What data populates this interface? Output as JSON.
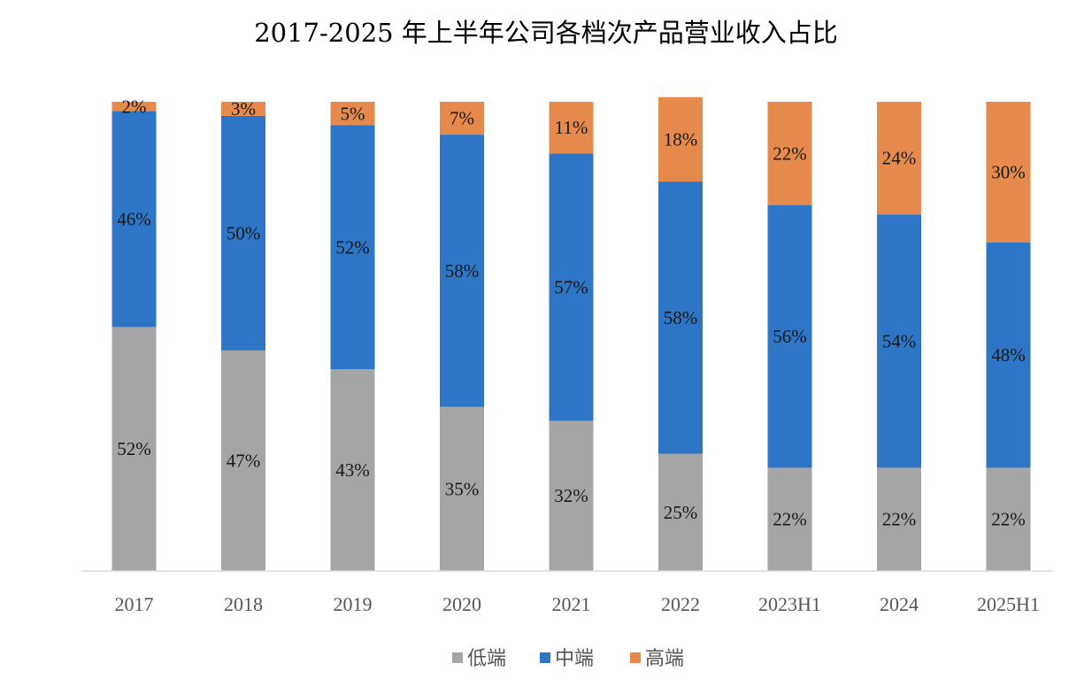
{
  "chart_data": {
    "type": "bar",
    "stacked": true,
    "title": "2017-2025 年上半年公司各档次产品营业收入占比",
    "categories": [
      "2017",
      "2018",
      "2019",
      "2020",
      "2021",
      "2022",
      "2023H1",
      "2024",
      "2025H1"
    ],
    "series": [
      {
        "name": "低端",
        "color": "#a5a5a5",
        "values": [
          52,
          47,
          43,
          35,
          32,
          25,
          22,
          22,
          22
        ],
        "labels": [
          "52%",
          "47%",
          "43%",
          "35%",
          "32%",
          "25%",
          "22%",
          "22%",
          "22%"
        ]
      },
      {
        "name": "中端",
        "color": "#2e75c6",
        "values": [
          46,
          50,
          52,
          58,
          57,
          58,
          56,
          54,
          48
        ],
        "labels": [
          "46%",
          "50%",
          "52%",
          "58%",
          "57%",
          "58%",
          "56%",
          "54%",
          "48%"
        ]
      },
      {
        "name": "高端",
        "color": "#e58a4c",
        "values": [
          2,
          3,
          5,
          7,
          11,
          18,
          22,
          24,
          30
        ],
        "labels": [
          "2%",
          "3%",
          "5%",
          "7%",
          "11%",
          "18%",
          "22%",
          "24%",
          "30%"
        ]
      }
    ],
    "ylim": [
      0,
      100
    ],
    "xlabel": "",
    "ylabel": "",
    "legend_position": "bottom",
    "grid": false
  }
}
